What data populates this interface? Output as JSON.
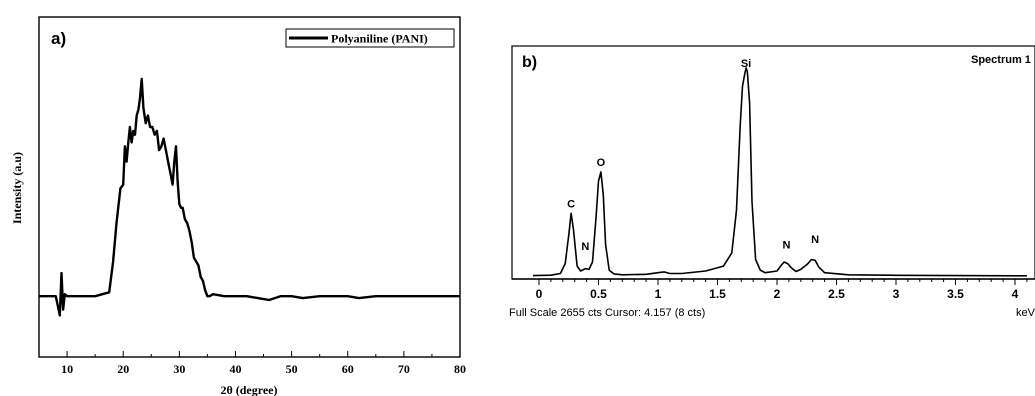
{
  "chart_data": [
    {
      "type": "line",
      "panel_label": "a)",
      "xlabel": "2θ (degree)",
      "ylabel": "Intensity (a.u)",
      "xlim": [
        5,
        80
      ],
      "x_ticks": [
        10,
        20,
        30,
        40,
        50,
        60,
        70,
        80
      ],
      "y_ticks_labeled": false,
      "grid": false,
      "legend": {
        "position": "top-right",
        "entries": [
          "Polyaniline (PANI)"
        ]
      },
      "series": [
        {
          "name": "Polyaniline (PANI)",
          "x": [
            5,
            8,
            8.7,
            9.0,
            9.3,
            9.6,
            10,
            12,
            15,
            17.5,
            18.2,
            18.8,
            19.5,
            20.0,
            20.3,
            20.6,
            20.9,
            21.2,
            21.5,
            21.8,
            22.1,
            22.4,
            22.7,
            23.0,
            23.3,
            23.6,
            24.0,
            24.4,
            24.8,
            25.2,
            25.6,
            26.0,
            26.4,
            26.8,
            27.2,
            27.6,
            28.0,
            28.4,
            28.8,
            29.1,
            29.4,
            29.7,
            30.0,
            30.3,
            30.6,
            31.0,
            31.4,
            31.8,
            32.2,
            32.6,
            33.0,
            33.4,
            33.8,
            34.2,
            34.6,
            35.0,
            35.4,
            36,
            38,
            40,
            42,
            44,
            46,
            47,
            48,
            50,
            52,
            55,
            58,
            60,
            62,
            65,
            68,
            70,
            72,
            75,
            78,
            80
          ],
          "y": [
            0.02,
            0.02,
            -0.08,
            0.14,
            -0.05,
            0.03,
            0.02,
            0.02,
            0.02,
            0.04,
            0.2,
            0.4,
            0.58,
            0.6,
            0.8,
            0.72,
            0.82,
            0.9,
            0.82,
            0.88,
            0.86,
            0.96,
            0.99,
            1.05,
            1.15,
            1.0,
            0.92,
            0.96,
            0.9,
            0.9,
            0.86,
            0.88,
            0.78,
            0.8,
            0.84,
            0.78,
            0.72,
            0.66,
            0.6,
            0.72,
            0.8,
            0.62,
            0.5,
            0.48,
            0.48,
            0.42,
            0.4,
            0.36,
            0.3,
            0.22,
            0.2,
            0.18,
            0.12,
            0.1,
            0.05,
            0.02,
            0.02,
            0.03,
            0.02,
            0.02,
            0.02,
            0.01,
            0.0,
            0.01,
            0.02,
            0.02,
            0.01,
            0.02,
            0.02,
            0.02,
            0.01,
            0.02,
            0.02,
            0.02,
            0.02,
            0.02,
            0.02,
            0.02
          ]
        }
      ]
    },
    {
      "type": "line",
      "panel_label": "b)",
      "title": "Spectrum 1",
      "xlabel": "keV",
      "xlim": [
        0,
        4.1
      ],
      "x_ticks": [
        0,
        0.5,
        1,
        1.5,
        2,
        2.5,
        3,
        3.5,
        4
      ],
      "x_tick_labels": [
        "0",
        "0.5",
        "1",
        "1.5",
        "2",
        "2.5",
        "3",
        "3.5",
        "4"
      ],
      "footer": "Full Scale 2655 cts Cursor: 4.157 (8 cts)",
      "grid": false,
      "annotations": [
        {
          "label": "C",
          "x": 0.27,
          "y": 760
        },
        {
          "label": "N",
          "x": 0.39,
          "y": 240
        },
        {
          "label": "O",
          "x": 0.52,
          "y": 1260
        },
        {
          "label": "Si",
          "x": 1.74,
          "y": 2460
        },
        {
          "label": "N",
          "x": 2.08,
          "y": 260
        },
        {
          "label": "N",
          "x": 2.32,
          "y": 330
        }
      ],
      "series": [
        {
          "x": [
            -0.05,
            0.1,
            0.18,
            0.22,
            0.25,
            0.27,
            0.29,
            0.32,
            0.35,
            0.39,
            0.42,
            0.45,
            0.48,
            0.5,
            0.52,
            0.54,
            0.56,
            0.59,
            0.63,
            0.7,
            0.9,
            1.0,
            1.05,
            1.1,
            1.2,
            1.4,
            1.55,
            1.62,
            1.66,
            1.69,
            1.71,
            1.73,
            1.74,
            1.75,
            1.77,
            1.79,
            1.82,
            1.86,
            1.9,
            2.0,
            2.03,
            2.06,
            2.09,
            2.12,
            2.16,
            2.2,
            2.26,
            2.29,
            2.32,
            2.35,
            2.4,
            2.6,
            3.0,
            3.5,
            4.1
          ],
          "y": [
            5,
            10,
            30,
            150,
            500,
            760,
            560,
            120,
            60,
            90,
            80,
            170,
            720,
            1150,
            1260,
            980,
            380,
            70,
            25,
            15,
            20,
            40,
            50,
            30,
            30,
            60,
            120,
            280,
            800,
            1800,
            2300,
            2460,
            2520,
            2480,
            2100,
            900,
            200,
            70,
            40,
            60,
            120,
            170,
            150,
            100,
            55,
            80,
            150,
            200,
            190,
            110,
            40,
            15,
            8,
            5,
            3
          ]
        }
      ]
    }
  ]
}
